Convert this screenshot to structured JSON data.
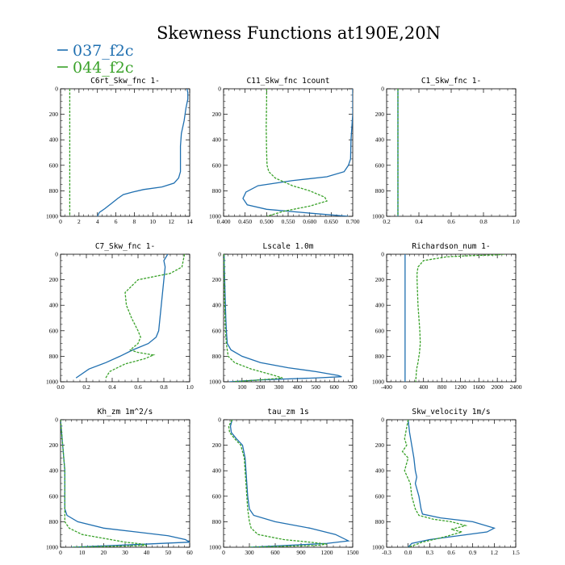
{
  "figure": {
    "title": "Skewness Functions at190E,20N",
    "legend": [
      {
        "label": "037_f2c",
        "color": "#1f6fb0"
      },
      {
        "label": "044_f2c",
        "color": "#3aa22a"
      }
    ]
  },
  "chart_data": [
    {
      "type": "line",
      "title": "C6rt_Skw_fnc  1-",
      "xticks": [
        "0",
        "2",
        "4",
        "6",
        "8",
        "10",
        "12",
        "14"
      ],
      "xlim": [
        0,
        14
      ],
      "yticks": [
        "0",
        "200",
        "400",
        "600",
        "800",
        "1000"
      ],
      "ylim": [
        1000,
        0
      ],
      "series": [
        {
          "name": "037_f2c",
          "x": [
            13.7,
            13.8,
            13.8,
            13.6,
            13.4,
            13.1,
            13.0,
            13.0,
            13.0,
            12.8,
            12.3,
            11.0,
            9.0,
            7.8,
            6.8,
            6.2,
            5.5,
            4.8,
            4.2,
            4.0
          ],
          "y": [
            0,
            30,
            80,
            150,
            250,
            350,
            450,
            550,
            650,
            700,
            740,
            770,
            790,
            810,
            830,
            860,
            900,
            940,
            970,
            1000
          ]
        },
        {
          "name": "044_f2c",
          "x": [
            1.0,
            1.0,
            1.0,
            1.0,
            1.0,
            1.0
          ],
          "y": [
            0,
            200,
            400,
            600,
            800,
            1000
          ]
        }
      ]
    },
    {
      "type": "line",
      "title": "C11_Skw_fnc  1count",
      "xticks": [
        "0.400",
        "0.450",
        "0.500",
        "0.550",
        "0.600",
        "0.650",
        "0.700"
      ],
      "xlim": [
        0.4,
        0.7
      ],
      "yticks": [
        "0",
        "200",
        "400",
        "600",
        "800",
        "1000"
      ],
      "ylim": [
        1000,
        0
      ],
      "series": [
        {
          "name": "037_f2c",
          "x": [
            0.7,
            0.7,
            0.698,
            0.696,
            0.695,
            0.69,
            0.68,
            0.64,
            0.56,
            0.48,
            0.452,
            0.445,
            0.455,
            0.5,
            0.6,
            0.69
          ],
          "y": [
            0,
            200,
            300,
            400,
            550,
            600,
            650,
            690,
            720,
            760,
            810,
            860,
            910,
            945,
            975,
            1000
          ]
        },
        {
          "name": "044_f2c",
          "x": [
            0.5,
            0.5,
            0.499,
            0.5,
            0.501,
            0.505,
            0.52,
            0.56,
            0.6,
            0.635,
            0.64,
            0.6,
            0.54,
            0.5
          ],
          "y": [
            0,
            100,
            300,
            500,
            600,
            650,
            700,
            760,
            800,
            850,
            880,
            920,
            960,
            1000
          ]
        }
      ]
    },
    {
      "type": "line",
      "title": "C1_Skw_fnc  1-",
      "xticks": [
        "0.2",
        "0.4",
        "0.6",
        "0.8",
        "1.0"
      ],
      "xlim": [
        0.2,
        1.0
      ],
      "yticks": [
        "0",
        "200",
        "400",
        "600",
        "800",
        "1000"
      ],
      "ylim": [
        1000,
        0
      ],
      "series": [
        {
          "name": "037_f2c",
          "x": [
            0.27,
            0.27,
            0.27,
            0.27,
            0.27,
            0.27
          ],
          "y": [
            0,
            200,
            400,
            600,
            800,
            1000
          ]
        },
        {
          "name": "044_f2c",
          "x": [
            0.27,
            0.27,
            0.27,
            0.27,
            0.27,
            0.27
          ],
          "y": [
            0,
            200,
            400,
            600,
            800,
            1000
          ]
        }
      ]
    },
    {
      "type": "line",
      "title": "C7_Skw_fnc  1-",
      "xticks": [
        "0.0",
        "0.2",
        "0.4",
        "0.6",
        "0.8",
        "1.0"
      ],
      "xlim": [
        0.0,
        1.0
      ],
      "yticks": [
        "0",
        "200",
        "400",
        "600",
        "800",
        "1000"
      ],
      "ylim": [
        1000,
        0
      ],
      "series": [
        {
          "name": "037_f2c",
          "x": [
            0.83,
            0.8,
            0.81,
            0.8,
            0.79,
            0.78,
            0.77,
            0.76,
            0.74,
            0.68,
            0.56,
            0.46,
            0.35,
            0.22,
            0.12
          ],
          "y": [
            0,
            50,
            100,
            200,
            300,
            400,
            500,
            600,
            650,
            700,
            750,
            800,
            850,
            900,
            970
          ]
        },
        {
          "name": "044_f2c",
          "x": [
            0.96,
            0.95,
            0.94,
            0.85,
            0.6,
            0.5,
            0.51,
            0.55,
            0.6,
            0.62,
            0.6,
            0.54,
            0.6,
            0.72,
            0.65,
            0.5,
            0.38,
            0.35
          ],
          "y": [
            0,
            50,
            100,
            150,
            200,
            300,
            400,
            500,
            600,
            650,
            700,
            750,
            770,
            790,
            820,
            860,
            920,
            970
          ]
        }
      ]
    },
    {
      "type": "line",
      "title": "Lscale  1.0m",
      "xticks": [
        "0",
        "100",
        "200",
        "300",
        "400",
        "500",
        "600",
        "700"
      ],
      "xlim": [
        0,
        700
      ],
      "yticks": [
        "0",
        "200",
        "400",
        "600",
        "800",
        "1000"
      ],
      "ylim": [
        1000,
        0
      ],
      "series": [
        {
          "name": "037_f2c",
          "x": [
            3,
            4,
            6,
            8,
            10,
            12,
            15,
            20,
            40,
            100,
            200,
            350,
            500,
            620,
            640,
            500,
            200,
            30
          ],
          "y": [
            0,
            100,
            200,
            300,
            400,
            500,
            600,
            700,
            750,
            800,
            850,
            890,
            920,
            950,
            960,
            970,
            985,
            1000
          ]
        },
        {
          "name": "044_f2c",
          "x": [
            2,
            3,
            4,
            5,
            6,
            8,
            10,
            15,
            25,
            60,
            150,
            250,
            320,
            200,
            50
          ],
          "y": [
            0,
            100,
            200,
            300,
            400,
            500,
            600,
            700,
            800,
            850,
            900,
            940,
            970,
            985,
            1000
          ]
        }
      ]
    },
    {
      "type": "line",
      "title": "Richardson_num  1-",
      "xticks": [
        "-400",
        "0",
        "400",
        "800",
        "1200",
        "1600",
        "2000",
        "2400"
      ],
      "xlim": [
        -400,
        2400
      ],
      "yticks": [
        "0",
        "200",
        "400",
        "600",
        "800",
        "1000"
      ],
      "ylim": [
        1000,
        0
      ],
      "series": [
        {
          "name": "037_f2c",
          "x": [
            0,
            0,
            0,
            0,
            0,
            0
          ],
          "y": [
            0,
            200,
            400,
            600,
            800,
            1000
          ]
        },
        {
          "name": "044_f2c",
          "x": [
            2150,
            2000,
            1500,
            900,
            400,
            280,
            260,
            260,
            270,
            280,
            300,
            320,
            330,
            310,
            300,
            280,
            250,
            230
          ],
          "y": [
            0,
            5,
            10,
            20,
            50,
            100,
            150,
            200,
            300,
            400,
            500,
            600,
            700,
            780,
            800,
            850,
            900,
            1000
          ]
        }
      ]
    },
    {
      "type": "line",
      "title": "Kh_zm   1m^2/s",
      "xticks": [
        "0",
        "10",
        "20",
        "30",
        "40",
        "50",
        "60"
      ],
      "xlim": [
        0,
        60
      ],
      "yticks": [
        "0",
        "200",
        "400",
        "600",
        "800",
        "1000"
      ],
      "ylim": [
        1000,
        0
      ],
      "series": [
        {
          "name": "037_f2c",
          "x": [
            0,
            0.5,
            1,
            1.5,
            2,
            2,
            2,
            2,
            3,
            8,
            20,
            35,
            50,
            58,
            60,
            40,
            5
          ],
          "y": [
            0,
            100,
            200,
            300,
            400,
            500,
            600,
            700,
            750,
            800,
            850,
            880,
            910,
            940,
            960,
            975,
            1000
          ]
        },
        {
          "name": "044_f2c",
          "x": [
            0,
            0.5,
            1,
            1.5,
            2,
            2,
            2,
            2,
            2,
            4,
            10,
            20,
            30,
            38,
            40,
            30,
            5
          ],
          "y": [
            0,
            100,
            200,
            300,
            400,
            500,
            600,
            700,
            800,
            850,
            900,
            930,
            960,
            975,
            985,
            990,
            1000
          ]
        }
      ]
    },
    {
      "type": "line",
      "title": "tau_zm   1s",
      "xticks": [
        "0",
        "300",
        "600",
        "900",
        "1200",
        "1500"
      ],
      "xlim": [
        0,
        1500
      ],
      "yticks": [
        "0",
        "200",
        "400",
        "600",
        "800",
        "1000"
      ],
      "ylim": [
        1000,
        0
      ],
      "series": [
        {
          "name": "037_f2c",
          "x": [
            100,
            80,
            90,
            150,
            220,
            250,
            260,
            270,
            280,
            300,
            350,
            600,
            1000,
            1300,
            1450,
            1200,
            300
          ],
          "y": [
            0,
            50,
            100,
            150,
            200,
            300,
            400,
            500,
            600,
            700,
            750,
            800,
            850,
            900,
            950,
            970,
            1000
          ]
        },
        {
          "name": "044_f2c",
          "x": [
            100,
            60,
            70,
            130,
            200,
            240,
            250,
            260,
            270,
            280,
            300,
            320,
            400,
            700,
            1000,
            1200,
            1100,
            300
          ],
          "y": [
            0,
            50,
            100,
            150,
            200,
            300,
            400,
            500,
            600,
            700,
            800,
            850,
            900,
            940,
            960,
            975,
            985,
            1000
          ]
        }
      ]
    },
    {
      "type": "line",
      "title": "Skw_velocity  1m/s",
      "xticks": [
        "-0.3",
        "0.0",
        "0.3",
        "0.6",
        "0.9",
        "1.2",
        "1.5"
      ],
      "xlim": [
        -0.3,
        1.5
      ],
      "yticks": [
        "0",
        "200",
        "400",
        "600",
        "800",
        "1000"
      ],
      "ylim": [
        1000,
        0
      ],
      "series": [
        {
          "name": "037_f2c",
          "x": [
            0.0,
            0.02,
            0.05,
            0.08,
            0.1,
            0.12,
            0.1,
            0.15,
            0.18,
            0.2,
            0.45,
            0.9,
            1.2,
            1.1,
            0.7,
            0.3,
            0.05,
            0.0
          ],
          "y": [
            0,
            100,
            200,
            300,
            400,
            450,
            500,
            600,
            700,
            740,
            770,
            800,
            850,
            880,
            910,
            940,
            970,
            1000
          ]
        },
        {
          "name": "044_f2c",
          "x": [
            0.0,
            -0.05,
            -0.02,
            -0.08,
            0.0,
            -0.05,
            0.03,
            0.05,
            0.1,
            0.15,
            0.35,
            0.6,
            0.8,
            0.6,
            0.75,
            0.5,
            0.2,
            0.0
          ],
          "y": [
            0,
            150,
            200,
            250,
            300,
            400,
            500,
            600,
            700,
            750,
            780,
            800,
            830,
            860,
            880,
            920,
            960,
            1000
          ]
        }
      ]
    }
  ]
}
